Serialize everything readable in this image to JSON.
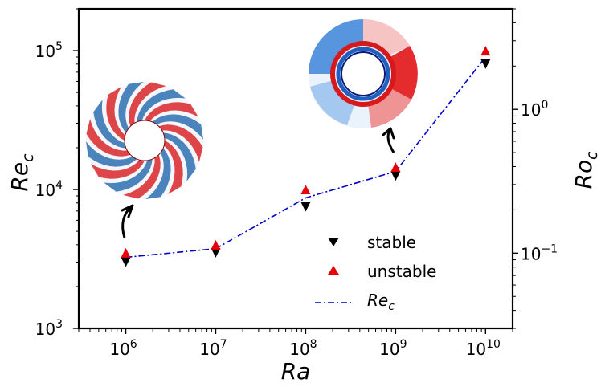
{
  "chart_data": {
    "type": "line",
    "x_scale": "log",
    "y_scale": "log",
    "xlabel": "Ra",
    "ylabel": "Re",
    "ylabel_sub": "c",
    "y2label": "Ro",
    "y2label_sub": "c",
    "xlim": [
      300000,
      20000000000
    ],
    "ylim": [
      1000,
      200000
    ],
    "y2lim": [
      0.03,
      5
    ],
    "x": [
      1000000,
      10000000,
      100000000,
      1000000000,
      10000000000
    ],
    "x_tick_labels": [
      {
        "base": "10",
        "exp": "6"
      },
      {
        "base": "10",
        "exp": "7"
      },
      {
        "base": "10",
        "exp": "8"
      },
      {
        "base": "10",
        "exp": "9"
      },
      {
        "base": "10",
        "exp": "10"
      }
    ],
    "y_tick_labels": [
      {
        "value": 1000,
        "base": "10",
        "exp": "3"
      },
      {
        "value": 10000,
        "base": "10",
        "exp": "4"
      },
      {
        "value": 100000,
        "base": "10",
        "exp": "5"
      }
    ],
    "y2_tick_labels": [
      {
        "value": 0.1,
        "base": "10",
        "exp": "−1"
      },
      {
        "value": 1,
        "base": "10",
        "exp": "0"
      }
    ],
    "series": [
      {
        "name": "stable",
        "marker": "triangle-down",
        "color": "#000000",
        "values": [
          3000,
          3500,
          7500,
          12500,
          80000
        ]
      },
      {
        "name": "unstable",
        "marker": "triangle-up",
        "color": "#e8000b",
        "values": [
          3500,
          4000,
          10000,
          14500,
          100000
        ]
      },
      {
        "name": "Re",
        "name_sub": "c",
        "marker": "dash-dot-line",
        "color": "#0000cc",
        "values": [
          3250,
          3750,
          8700,
          13500,
          90000
        ]
      }
    ],
    "legend_position": "lower-right",
    "insets": [
      {
        "name": "flow-pattern-ra-1e6",
        "anchor_x": 1000000
      },
      {
        "name": "flow-pattern-ra-1e9",
        "anchor_x": 1000000000
      }
    ]
  }
}
